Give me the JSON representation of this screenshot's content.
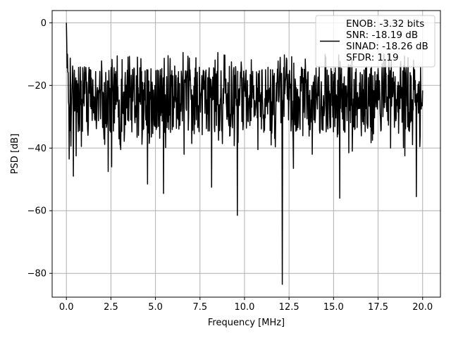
{
  "chart_data": {
    "type": "line",
    "xlabel": "Frequency [MHz]",
    "ylabel": "PSD [dB]",
    "xlim": [
      -0.8,
      21.0
    ],
    "ylim": [
      -87.6,
      3.9
    ],
    "grid": true,
    "legend_placement": "top-right",
    "xticks": [
      0.0,
      2.5,
      5.0,
      7.5,
      10.0,
      12.5,
      15.0,
      17.5,
      20.0
    ],
    "xtick_labels": [
      "0.0",
      "2.5",
      "5.0",
      "7.5",
      "10.0",
      "12.5",
      "15.0",
      "17.5",
      "20.0"
    ],
    "yticks": [
      0,
      -20,
      -40,
      -60,
      -80
    ],
    "ytick_labels": [
      "0",
      "−20",
      "−40",
      "−60",
      "−80"
    ],
    "legend": [
      "ENOB: -3.32 bits",
      "SNR: -18.19 dB",
      "SINAD: -18.26 dB",
      "SFDR: 1.19"
    ],
    "series": [
      {
        "color": "#000000",
        "x_start": 0.0,
        "x_end": 20.0,
        "num_points": 1024,
        "typical_range_db": [
          -35,
          -14
        ],
        "noise_floor_db": -24,
        "peaks": [
          {
            "x": 0.0,
            "y": 0.0
          },
          {
            "x": 0.02,
            "y": -6.0
          },
          {
            "x": 0.05,
            "y": -10.0
          },
          {
            "x": 6.55,
            "y": -9.5
          },
          {
            "x": 8.5,
            "y": -9.5
          }
        ],
        "dips": [
          {
            "x": 0.15,
            "y": -43.5
          },
          {
            "x": 0.4,
            "y": -49.0
          },
          {
            "x": 0.55,
            "y": -42.5
          },
          {
            "x": 0.85,
            "y": -39.5
          },
          {
            "x": 2.35,
            "y": -47.5
          },
          {
            "x": 2.55,
            "y": -46.0
          },
          {
            "x": 3.05,
            "y": -40.5
          },
          {
            "x": 4.55,
            "y": -51.5
          },
          {
            "x": 5.45,
            "y": -54.5
          },
          {
            "x": 6.6,
            "y": -42.0
          },
          {
            "x": 8.15,
            "y": -52.5
          },
          {
            "x": 8.55,
            "y": -37.5
          },
          {
            "x": 9.6,
            "y": -61.5
          },
          {
            "x": 10.75,
            "y": -40.5
          },
          {
            "x": 11.5,
            "y": -39.0
          },
          {
            "x": 12.12,
            "y": -83.5
          },
          {
            "x": 12.75,
            "y": -46.5
          },
          {
            "x": 13.8,
            "y": -42.0
          },
          {
            "x": 15.35,
            "y": -56.0
          },
          {
            "x": 15.85,
            "y": -41.5
          },
          {
            "x": 16.05,
            "y": -41.0
          },
          {
            "x": 18.2,
            "y": -40.0
          },
          {
            "x": 19.0,
            "y": -42.5
          },
          {
            "x": 19.65,
            "y": -55.5
          }
        ]
      }
    ]
  }
}
